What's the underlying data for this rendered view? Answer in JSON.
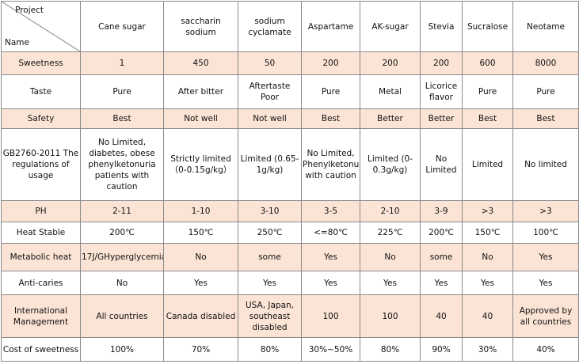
{
  "corner": {
    "top": "Project",
    "bottom": "Name"
  },
  "columns": [
    "Cane sugar",
    "saccharin sodium",
    "sodium cyclamate",
    "Aspartame",
    "AK-sugar",
    "Stevia",
    "Sucralose",
    "Neotame"
  ],
  "rows": [
    {
      "label": "Sweetness",
      "cells": [
        "1",
        "450",
        "50",
        "200",
        "200",
        "200",
        "600",
        "8000"
      ]
    },
    {
      "label": "Taste",
      "cells": [
        "Pure",
        "After bitter",
        "Aftertaste Poor",
        "Pure",
        "Metal",
        "Licorice flavor",
        "Pure",
        "Pure"
      ]
    },
    {
      "label": "Safety",
      "cells": [
        "Best",
        "Not well",
        "Not well",
        "Best",
        "Better",
        "Better",
        "Best",
        "Best"
      ]
    },
    {
      "label": "GB2760-2011 The regulations of usage",
      "cells": [
        "No Limited, diabetes, obese phenylketonuria patients with caution",
        "Strictly limited（0-0.15g/kg）",
        "Limited (0.65-1g/kg)",
        "No Limited, Phenylketonuria with caution",
        "Limited (0-0.3g/kg)",
        "No Limited",
        "Limited",
        "No limited"
      ]
    },
    {
      "label": "PH",
      "cells": [
        "2-11",
        "1-10",
        "3-10",
        "3-5",
        "2-10",
        "3-9",
        ">3",
        ">3"
      ]
    },
    {
      "label": "Heat Stable",
      "cells": [
        "200℃",
        "150℃",
        "250℃",
        "<=80℃",
        "225℃",
        "200℃",
        "150℃",
        "100℃"
      ]
    },
    {
      "label": "Metabolic heat",
      "cells": [
        "17J/GHyperglycemia",
        "No",
        "some",
        "Yes",
        "No",
        "some",
        "No",
        "Yes"
      ]
    },
    {
      "label": "Anti-caries",
      "cells": [
        "No",
        "Yes",
        "Yes",
        "Yes",
        "Yes",
        "Yes",
        "Yes",
        "Yes"
      ]
    },
    {
      "label": "International Management",
      "cells": [
        "All countries",
        "Canada disabled",
        "USA, Japan, southeast disabled",
        "100",
        "100",
        "40",
        "40",
        "Approved by all countries"
      ]
    },
    {
      "label": "Cost of sweetness",
      "cells": [
        "100%",
        "70%",
        "80%",
        "30%~50%",
        "80%",
        "90%",
        "30%",
        "40%"
      ]
    }
  ]
}
